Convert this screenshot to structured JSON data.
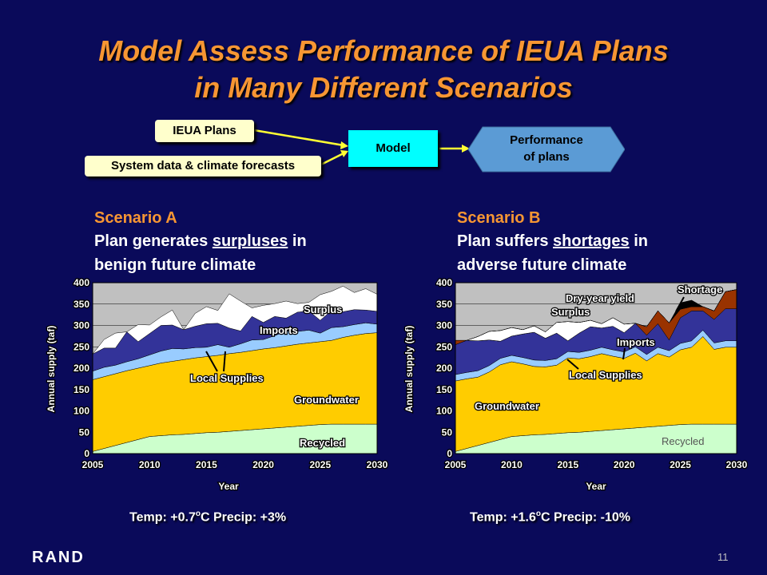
{
  "slide": {
    "title_line1": "Model Assess Performance of IEUA Plans",
    "title_line2": "in Many Different Scenarios",
    "logo": "RAND",
    "page_number": "11"
  },
  "flow": {
    "plans": "IEUA Plans",
    "data": "System data & climate forecasts",
    "model": "Model",
    "performance_line1": "Performance",
    "performance_line2": "of plans"
  },
  "scenario_a": {
    "heading": "Scenario A",
    "text_pre": "Plan generates ",
    "text_key": "surpluses",
    "text_post": " in",
    "text_line2": "benign future climate",
    "caption_temp": "Temp: +0.7",
    "caption_unit": "o",
    "caption_rest": "C Precip: +3%"
  },
  "scenario_b": {
    "heading": "Scenario B",
    "text_pre": "Plan suffers ",
    "text_key": "shortages",
    "text_post": " in",
    "text_line2": "adverse future climate",
    "caption_temp": "Temp: +1.6",
    "caption_unit": "o",
    "caption_rest": "C Precip: -10%"
  },
  "colors": {
    "recycled": "#ccffcc",
    "groundwater": "#ffcc00",
    "local": "#99ccff",
    "imports": "#333399",
    "surplus": "#ffffff",
    "dry_year": "#993300",
    "shortage": "#000000",
    "plot_bg": "#c0c0c0"
  },
  "chart_data": [
    {
      "type": "area",
      "xlabel": "Year",
      "ylabel": "Annual supply (taf)",
      "xlim": [
        2005,
        2030
      ],
      "ylim": [
        0,
        400
      ],
      "x_ticks": [
        "2005",
        "2010",
        "2015",
        "2020",
        "2025",
        "2030"
      ],
      "y_ticks": [
        "0",
        "50",
        "100",
        "150",
        "200",
        "250",
        "300",
        "350",
        "400"
      ],
      "x": [
        2005,
        2006,
        2007,
        2008,
        2009,
        2010,
        2011,
        2012,
        2013,
        2014,
        2015,
        2016,
        2017,
        2018,
        2019,
        2020,
        2021,
        2022,
        2023,
        2024,
        2025,
        2026,
        2027,
        2028,
        2029,
        2030
      ],
      "series": [
        {
          "name": "Recycled",
          "values": [
            5,
            12,
            19,
            26,
            33,
            40,
            42,
            44,
            45,
            47,
            49,
            50,
            52,
            54,
            56,
            58,
            60,
            62,
            64,
            66,
            68,
            69,
            69,
            69,
            69,
            69
          ]
        },
        {
          "name": "Groundwater",
          "values": [
            168,
            168,
            168,
            168,
            167,
            166,
            170,
            172,
            175,
            177,
            178,
            180,
            182,
            183,
            185,
            187,
            188,
            190,
            192,
            193,
            194,
            196,
            203,
            208,
            212,
            214
          ]
        },
        {
          "name": "Local Supplies",
          "values": [
            20,
            22,
            20,
            21,
            22,
            25,
            28,
            30,
            25,
            24,
            22,
            25,
            15,
            20,
            25,
            22,
            28,
            35,
            30,
            30,
            20,
            30,
            25,
            25,
            25,
            20
          ]
        },
        {
          "name": "Imports",
          "values": [
            40,
            45,
            40,
            70,
            40,
            50,
            60,
            55,
            45,
            50,
            55,
            50,
            45,
            30,
            55,
            40,
            45,
            30,
            45,
            45,
            30,
            40,
            35,
            35,
            30,
            30
          ]
        },
        {
          "name": "Surplus",
          "values": [
            0,
            20,
            35,
            0,
            40,
            20,
            20,
            35,
            0,
            30,
            40,
            30,
            80,
            70,
            20,
            40,
            30,
            40,
            20,
            20,
            60,
            45,
            60,
            40,
            50,
            40
          ]
        }
      ],
      "annotations": [
        "Surplus",
        "Imports",
        "Local Supplies",
        "Groundwater",
        "Recycled"
      ]
    },
    {
      "type": "area",
      "xlabel": "Year",
      "ylabel": "Annual supply (taf)",
      "xlim": [
        2005,
        2030
      ],
      "ylim": [
        0,
        400
      ],
      "x_ticks": [
        "2005",
        "2010",
        "2015",
        "2020",
        "2025",
        "2030"
      ],
      "y_ticks": [
        "0",
        "50",
        "100",
        "150",
        "200",
        "250",
        "300",
        "350",
        "400"
      ],
      "x": [
        2005,
        2006,
        2007,
        2008,
        2009,
        2010,
        2011,
        2012,
        2013,
        2014,
        2015,
        2016,
        2017,
        2018,
        2019,
        2020,
        2021,
        2022,
        2023,
        2024,
        2025,
        2026,
        2027,
        2028,
        2029,
        2030
      ],
      "series": [
        {
          "name": "Recycled",
          "values": [
            5,
            12,
            19,
            26,
            33,
            40,
            42,
            44,
            45,
            47,
            49,
            50,
            52,
            54,
            56,
            58,
            60,
            62,
            64,
            66,
            68,
            69,
            69,
            69,
            69,
            69
          ]
        },
        {
          "name": "Groundwater",
          "values": [
            165,
            163,
            160,
            165,
            175,
            175,
            168,
            160,
            158,
            160,
            175,
            172,
            175,
            180,
            172,
            165,
            175,
            155,
            170,
            160,
            175,
            180,
            205,
            175,
            180,
            180
          ]
        },
        {
          "name": "Local Supplies",
          "values": [
            15,
            15,
            15,
            15,
            15,
            15,
            15,
            15,
            15,
            15,
            15,
            15,
            15,
            15,
            15,
            15,
            15,
            15,
            15,
            15,
            15,
            15,
            15,
            15,
            15,
            15
          ]
        },
        {
          "name": "Imports",
          "values": [
            70,
            75,
            70,
            60,
            40,
            45,
            55,
            65,
            52,
            60,
            25,
            45,
            55,
            45,
            55,
            45,
            55,
            45,
            55,
            25,
            60,
            70,
            45,
            55,
            75,
            75
          ]
        },
        {
          "name": "Dry-year yield",
          "values": [
            10,
            0,
            0,
            0,
            0,
            0,
            0,
            0,
            0,
            0,
            0,
            0,
            0,
            0,
            0,
            0,
            0,
            20,
            30,
            40,
            20,
            10,
            10,
            20,
            40,
            45
          ]
        },
        {
          "name": "Surplus",
          "values": [
            0,
            0,
            10,
            20,
            25,
            20,
            10,
            15,
            15,
            25,
            45,
            25,
            15,
            10,
            20,
            20,
            0,
            0,
            0,
            0,
            0,
            0,
            0,
            0,
            0,
            0
          ]
        },
        {
          "name": "Shortage",
          "values": [
            0,
            0,
            0,
            0,
            0,
            0,
            0,
            0,
            0,
            0,
            0,
            0,
            0,
            0,
            0,
            0,
            0,
            0,
            0,
            0,
            15,
            15,
            0,
            0,
            0,
            0
          ]
        }
      ],
      "annotations": [
        "Shortage",
        "Dry-year yield",
        "Surplus",
        "Imports",
        "Local Supplies",
        "Groundwater",
        "Recycled"
      ]
    }
  ]
}
